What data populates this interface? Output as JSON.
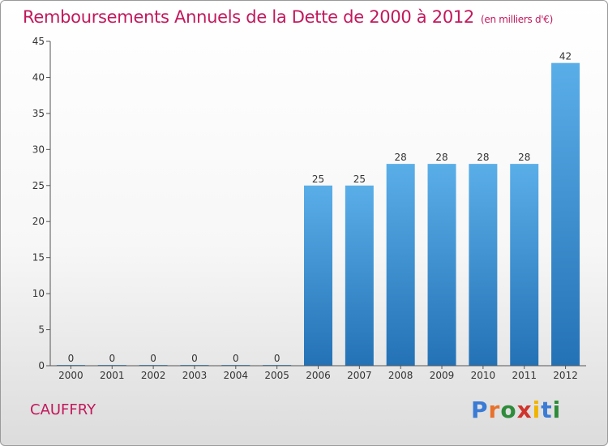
{
  "header": {
    "title": "Remboursements Annuels de la Dette de 2000 à 2012",
    "unit": "(en milliers d'€)"
  },
  "footer": {
    "commune": "CAUFFRY",
    "logo_letters": [
      "P",
      "r",
      "o",
      "x",
      "i",
      "t",
      "i"
    ],
    "logo_colors": [
      "#3a7bd5",
      "#e8712b",
      "#2e8b3a",
      "#d0342c",
      "#f0b400",
      "#3a7bd5",
      "#2e8b3a"
    ]
  },
  "chart_data": {
    "type": "bar",
    "title": "Remboursements Annuels de la Dette de 2000 à 2012",
    "xlabel": "",
    "ylabel": "",
    "categories": [
      "2000",
      "2001",
      "2002",
      "2003",
      "2004",
      "2005",
      "2006",
      "2007",
      "2008",
      "2009",
      "2010",
      "2011",
      "2012"
    ],
    "values": [
      0,
      0,
      0,
      0,
      0,
      0,
      25,
      25,
      28,
      28,
      28,
      28,
      42
    ],
    "data_labels": [
      "0",
      "0",
      "0",
      "0",
      "0",
      "0",
      "25",
      "25",
      "28",
      "28",
      "28",
      "28",
      "42"
    ],
    "ylim": [
      0,
      45
    ],
    "yticks": [
      0,
      5,
      10,
      15,
      20,
      25,
      30,
      35,
      40,
      45
    ],
    "grid": false,
    "bar_color": "#3d95d6"
  }
}
